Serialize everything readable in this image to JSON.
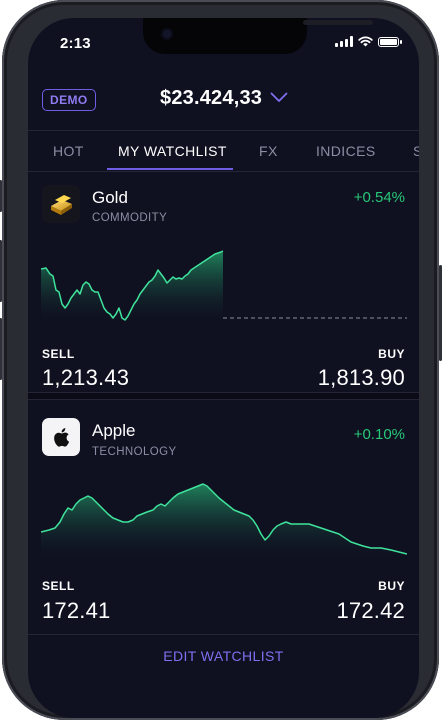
{
  "status": {
    "time": "2:13"
  },
  "header": {
    "demo_label": "DEMO",
    "balance": "$23.424,33"
  },
  "tabs": [
    {
      "label": "HOT"
    },
    {
      "label": "MY WATCHLIST",
      "active": true
    },
    {
      "label": "FX"
    },
    {
      "label": "INDICES"
    },
    {
      "label": "S"
    }
  ],
  "watchlist": [
    {
      "name": "Gold",
      "category": "COMMODITY",
      "change": "+0.54%",
      "sell_label": "SELL",
      "sell": "1,213.43",
      "buy_label": "BUY",
      "buy": "1,813.90",
      "icon": "gold-bar-icon"
    },
    {
      "name": "Apple",
      "category": "TECHNOLOGY",
      "change": "+0.10%",
      "sell_label": "SELL",
      "sell": "172.41",
      "buy_label": "BUY",
      "buy": "172.42",
      "icon": "apple-logo-icon"
    }
  ],
  "footer": {
    "edit_label": "EDIT WATCHLIST"
  },
  "colors": {
    "accent": "#6f5ee4",
    "positive": "#28c878",
    "background": "#0f1020"
  }
}
